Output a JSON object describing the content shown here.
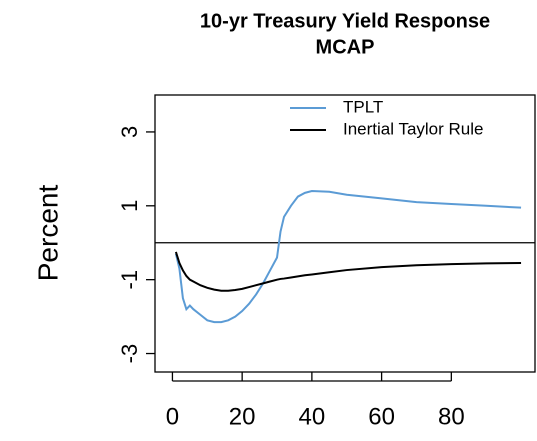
{
  "chart_data": {
    "type": "line",
    "title": "10-yr Treasury Yield Response",
    "subtitle": "MCAP",
    "y_label": "Percent",
    "x": [
      1,
      2,
      3,
      4,
      5,
      6,
      8,
      10,
      12,
      14,
      16,
      18,
      20,
      22,
      24,
      26,
      28,
      30,
      31,
      32,
      34,
      36,
      38,
      40,
      45,
      50,
      60,
      70,
      80,
      90,
      100
    ],
    "series": [
      {
        "name": "TPLT",
        "color": "#5b9bd5",
        "values": [
          -0.3,
          -0.7,
          -1.5,
          -1.8,
          -1.7,
          -1.8,
          -1.95,
          -2.1,
          -2.15,
          -2.15,
          -2.1,
          -2.0,
          -1.85,
          -1.65,
          -1.4,
          -1.1,
          -0.75,
          -0.4,
          0.3,
          0.7,
          1.0,
          1.25,
          1.35,
          1.4,
          1.38,
          1.3,
          1.2,
          1.1,
          1.05,
          1.0,
          0.95
        ]
      },
      {
        "name": "Inertial Taylor Rule",
        "color": "#000000",
        "values": [
          -0.25,
          -0.55,
          -0.75,
          -0.9,
          -1.0,
          -1.05,
          -1.15,
          -1.22,
          -1.27,
          -1.3,
          -1.3,
          -1.28,
          -1.25,
          -1.2,
          -1.15,
          -1.1,
          -1.05,
          -1.0,
          -0.98,
          -0.97,
          -0.94,
          -0.91,
          -0.88,
          -0.86,
          -0.8,
          -0.74,
          -0.66,
          -0.61,
          -0.58,
          -0.56,
          -0.55
        ]
      }
    ],
    "hline": 0,
    "xlim": [
      -5,
      104
    ],
    "ylim": [
      -3.5,
      4
    ],
    "xticks": [
      0,
      20,
      40,
      60,
      80
    ],
    "yticks": [
      -3,
      -1,
      1,
      3
    ],
    "legend": "top-right"
  }
}
